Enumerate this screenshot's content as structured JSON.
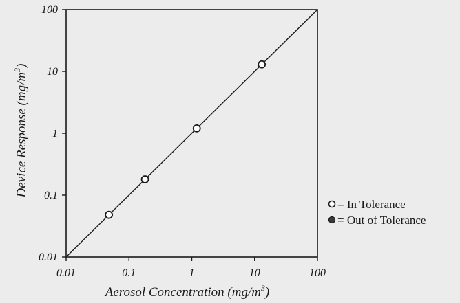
{
  "chart_data": {
    "type": "scatter",
    "xscale": "log",
    "yscale": "log",
    "xlim": [
      0.01,
      100
    ],
    "ylim": [
      0.01,
      100
    ],
    "xticks": [
      0.01,
      0.1,
      1,
      10,
      100
    ],
    "yticks": [
      0.01,
      0.1,
      1,
      10,
      100
    ],
    "xtick_labels": [
      "0.01",
      "0.1",
      "1",
      "10",
      "100"
    ],
    "ytick_labels": [
      "0.01",
      "0.1",
      "1",
      "10",
      "100"
    ],
    "xlabel_main": "Aerosol Concentration (mg/m",
    "xlabel_sup": "3",
    "xlabel_end": ")",
    "ylabel_main": "Device Response (mg/m",
    "ylabel_sup": "3",
    "ylabel_end": ")",
    "reference_line": {
      "x": [
        0.01,
        100
      ],
      "y": [
        0.01,
        100
      ]
    },
    "series": [
      {
        "name": "In Tolerance",
        "marker": "open-circle",
        "x": [
          0.048,
          0.18,
          1.2,
          13
        ],
        "y": [
          0.048,
          0.18,
          1.2,
          13
        ]
      },
      {
        "name": "Out of Tolerance",
        "marker": "filled-circle",
        "x": [],
        "y": []
      }
    ],
    "legend": {
      "placement": "right",
      "entries": [
        {
          "symbol": "open-circle",
          "label": "= In Tolerance"
        },
        {
          "symbol": "filled-circle",
          "label": "= Out of Tolerance"
        }
      ]
    },
    "grid": false
  },
  "colors": {
    "background": "#ececec",
    "ink": "#1a1a1a",
    "marker_fill_open": "#ffffff",
    "marker_fill_closed": "#3a3a3a"
  }
}
